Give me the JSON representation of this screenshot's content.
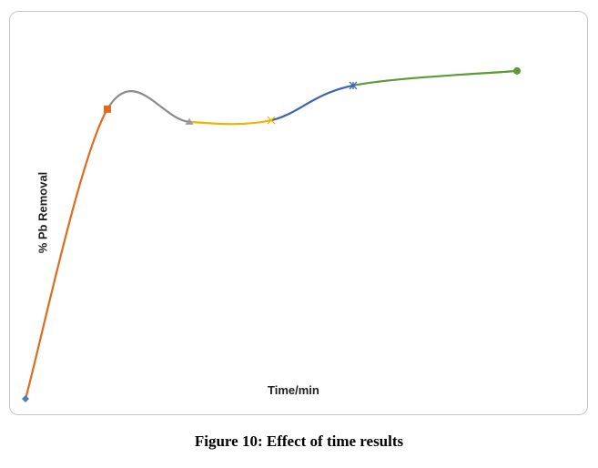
{
  "chart_data": {
    "type": "line",
    "title": "",
    "xlabel": "Time/min",
    "ylabel": "% Pb Removal",
    "xlim": [
      0,
      6.2
    ],
    "ylim": [
      0,
      105
    ],
    "grid": false,
    "legend": "none",
    "smooth": true,
    "points": [
      {
        "x": 0,
        "y": 0,
        "marker": "diamond",
        "color": "#4a7fc1"
      },
      {
        "x": 1,
        "y": 90.9,
        "marker": "square",
        "color": "#e06b1f"
      },
      {
        "x": 2,
        "y": 86.9,
        "marker": "triangle",
        "color": "#999999"
      },
      {
        "x": 3,
        "y": 87.4,
        "marker": "x",
        "color": "#f0b400"
      },
      {
        "x": 4,
        "y": 98.3,
        "marker": "star",
        "color": "#3b63b5"
      },
      {
        "x": 6,
        "y": 102.9,
        "marker": "circle",
        "color": "#5b9a35"
      }
    ],
    "segment_colors": [
      "#e06b1f",
      "#8c8c8c",
      "#f0b400",
      "#3b63b5",
      "#5b9a35"
    ]
  },
  "caption": "Figure 10: Effect of time results"
}
